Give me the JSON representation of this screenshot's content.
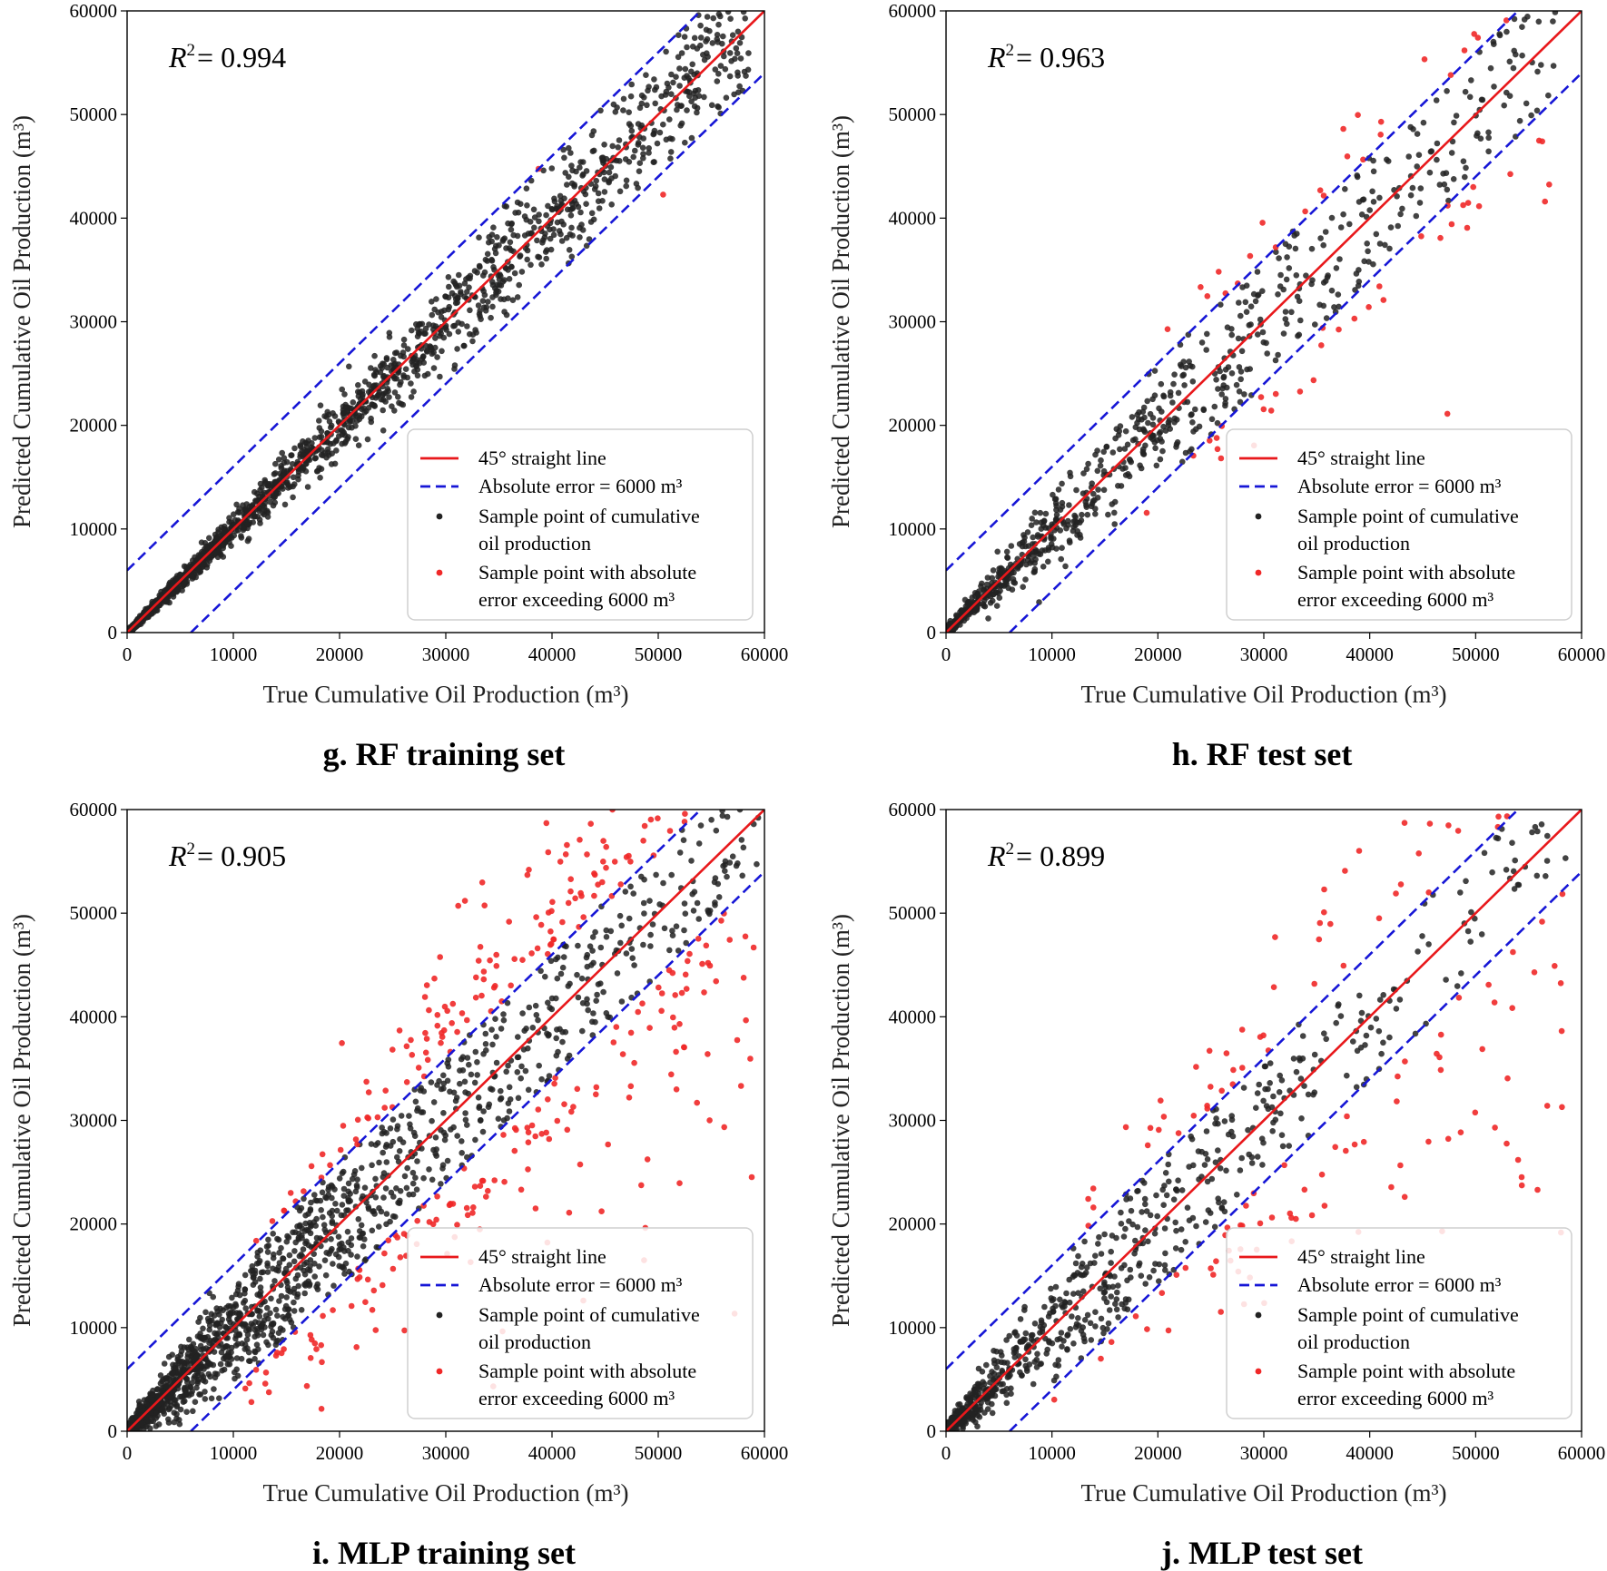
{
  "figure": {
    "xlabel": "True Cumulative Oil Production (m³)",
    "ylabel": "Predicted Cumulative Oil Production (m³)"
  },
  "legend": {
    "line45": "45°  straight line",
    "band": "Absolute  error = 6000 m³",
    "sample_line1": "Sample point of cumulative",
    "sample_line2": "oil production",
    "exceed_line1": "Sample point with absolute",
    "exceed_line2": "error exceeding  6000 m³",
    "placement": "lower-right"
  },
  "colors": {
    "identity_line": "#e8181b",
    "error_band": "#1616d6",
    "sample_point": "#222222",
    "exceed_point": "#f02828"
  },
  "chart_data": [
    {
      "type": "scatter",
      "caption": "g. RF training set",
      "r2_label": "R",
      "r2_value": "= 0.994",
      "xlim": [
        0,
        60000
      ],
      "ylim": [
        0,
        60000
      ],
      "xticks": [
        "0",
        "10000",
        "20000",
        "30000",
        "40000",
        "50000",
        "60000"
      ],
      "yticks": [
        "0",
        "10000",
        "20000",
        "30000",
        "40000",
        "50000",
        "60000"
      ],
      "error_band": 6000,
      "sample": {
        "count": 1700,
        "spread": 0.07,
        "max": 58500,
        "exceed_count": 2
      },
      "series": [
        {
          "name": "45°  straight line",
          "x": [
            0,
            60000
          ],
          "y": [
            0,
            60000
          ]
        },
        {
          "name": "Absolute  error = 6000 m³",
          "x": [
            0,
            54000
          ],
          "y": [
            6000,
            60000
          ]
        },
        {
          "name": "Absolute  error = 6000 m³",
          "x": [
            6000,
            60000
          ],
          "y": [
            0,
            54000
          ]
        }
      ]
    },
    {
      "type": "scatter",
      "caption": "h. RF test set",
      "r2_label": "R",
      "r2_value": "= 0.963",
      "xlim": [
        0,
        60000
      ],
      "ylim": [
        0,
        60000
      ],
      "xticks": [
        "0",
        "10000",
        "20000",
        "30000",
        "40000",
        "50000",
        "60000"
      ],
      "yticks": [
        "0",
        "10000",
        "20000",
        "30000",
        "40000",
        "50000",
        "60000"
      ],
      "error_band": 6000,
      "sample": {
        "count": 900,
        "spread": 0.15,
        "max": 58500,
        "exceed_count": 60
      },
      "series": [
        {
          "name": "45°  straight line",
          "x": [
            0,
            60000
          ],
          "y": [
            0,
            60000
          ]
        },
        {
          "name": "Absolute  error = 6000 m³",
          "x": [
            0,
            54000
          ],
          "y": [
            6000,
            60000
          ]
        },
        {
          "name": "Absolute  error = 6000 m³",
          "x": [
            6000,
            60000
          ],
          "y": [
            0,
            54000
          ]
        }
      ]
    },
    {
      "type": "scatter",
      "caption": "i. MLP training set",
      "r2_label": "R",
      "r2_value": "= 0.905",
      "xlim": [
        0,
        60000
      ],
      "ylim": [
        0,
        60000
      ],
      "xticks": [
        "0",
        "10000",
        "20000",
        "30000",
        "40000",
        "50000",
        "60000"
      ],
      "yticks": [
        "0",
        "10000",
        "20000",
        "30000",
        "40000",
        "50000",
        "60000"
      ],
      "error_band": 6000,
      "sample": {
        "count": 1800,
        "spread": 0.24,
        "max": 59500,
        "exceed_count": 300
      },
      "series": [
        {
          "name": "45°  straight line",
          "x": [
            0,
            60000
          ],
          "y": [
            0,
            60000
          ]
        },
        {
          "name": "Absolute  error = 6000 m³",
          "x": [
            0,
            54000
          ],
          "y": [
            6000,
            60000
          ]
        },
        {
          "name": "Absolute  error = 6000 m³",
          "x": [
            6000,
            60000
          ],
          "y": [
            0,
            54000
          ]
        }
      ]
    },
    {
      "type": "scatter",
      "caption": "j. MLP test set",
      "r2_label": "R",
      "r2_value": "= 0.899",
      "xlim": [
        0,
        60000
      ],
      "ylim": [
        0,
        60000
      ],
      "xticks": [
        "0",
        "10000",
        "20000",
        "30000",
        "40000",
        "50000",
        "60000"
      ],
      "yticks": [
        "0",
        "10000",
        "20000",
        "30000",
        "40000",
        "50000",
        "60000"
      ],
      "error_band": 6000,
      "sample": {
        "count": 850,
        "spread": 0.25,
        "max": 58500,
        "exceed_count": 130
      },
      "series": [
        {
          "name": "45°  straight line",
          "x": [
            0,
            60000
          ],
          "y": [
            0,
            60000
          ]
        },
        {
          "name": "Absolute  error = 6000 m³",
          "x": [
            0,
            54000
          ],
          "y": [
            6000,
            60000
          ]
        },
        {
          "name": "Absolute  error = 6000 m³",
          "x": [
            6000,
            60000
          ],
          "y": [
            0,
            54000
          ]
        }
      ]
    }
  ]
}
